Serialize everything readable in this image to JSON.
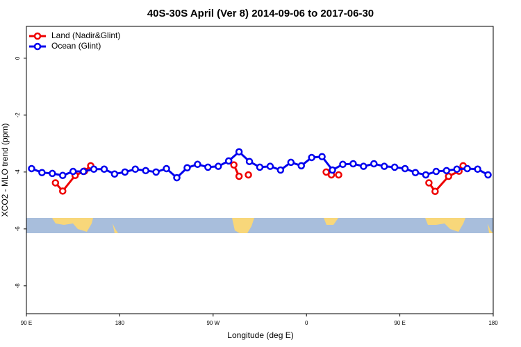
{
  "chart_data": {
    "type": "line",
    "title": "40S-30S April (Ver 8)   2014-09-06 to 2017-06-30",
    "x_label": "Longitude (deg E)",
    "y_label": "XCO2 - MLO trend (ppm)",
    "xlim": [
      90,
      540
    ],
    "xticks": [
      {
        "value": 90,
        "label": "90 E"
      },
      {
        "value": 180,
        "label": "180"
      },
      {
        "value": 270,
        "label": "90 W"
      },
      {
        "value": 360,
        "label": "0"
      },
      {
        "value": 450,
        "label": "90 E"
      },
      {
        "value": 540,
        "label": "180"
      }
    ],
    "ylim": [
      -8.98,
      1.12
    ],
    "yticks": [
      0,
      -2,
      -4,
      -6,
      -8
    ],
    "legend": "top-left",
    "series": [
      {
        "name": "Land (Nadir&Glint)",
        "color": "#ee0000",
        "x": [
          118,
          125,
          137,
          146,
          152,
          null,
          290,
          295,
          null,
          304,
          null,
          379,
          384,
          null,
          391,
          null,
          478,
          484,
          497,
          507,
          null,
          511
        ],
        "values": [
          -4.38,
          -4.67,
          -4.12,
          -3.97,
          -3.78,
          null,
          -3.75,
          -4.15,
          null,
          -4.1,
          null,
          -4.0,
          -4.1,
          null,
          -4.1,
          null,
          -4.38,
          -4.68,
          -4.15,
          -3.97,
          null,
          -3.78
        ]
      },
      {
        "name": "Ocean (Glint)",
        "color": "#0000ee",
        "x": [
          95,
          105,
          115,
          125,
          135,
          145,
          155,
          165,
          175,
          185,
          195,
          205,
          215,
          225,
          235,
          245,
          255,
          265,
          275,
          285,
          295,
          305,
          315,
          325,
          335,
          345,
          355,
          365,
          375,
          385,
          395,
          405,
          415,
          425,
          435,
          445,
          455,
          465,
          475,
          485,
          495,
          505,
          515,
          525,
          535
        ],
        "values": [
          -3.88,
          -4.02,
          -4.05,
          -4.12,
          -3.98,
          -3.98,
          -3.9,
          -3.9,
          -4.07,
          -4.0,
          -3.9,
          -3.95,
          -4.0,
          -3.88,
          -4.2,
          -3.85,
          -3.73,
          -3.83,
          -3.8,
          -3.61,
          -3.29,
          -3.63,
          -3.83,
          -3.8,
          -3.93,
          -3.66,
          -3.78,
          -3.49,
          -3.46,
          -3.93,
          -3.73,
          -3.71,
          -3.8,
          -3.71,
          -3.8,
          -3.83,
          -3.88,
          -4.02,
          -4.1,
          -3.98,
          -3.95,
          -3.9,
          -3.88,
          -3.9,
          -4.1
        ]
      }
    ]
  }
}
